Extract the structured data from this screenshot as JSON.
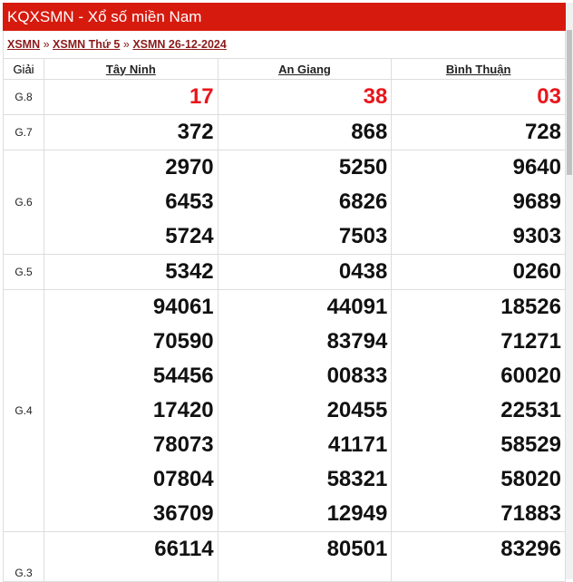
{
  "header": {
    "title": "KQXSMN - Xổ số miền Nam",
    "color": "#d71a0e"
  },
  "breadcrumb": [
    {
      "label": "XSMN"
    },
    {
      "label": "XSMN Thứ 5"
    },
    {
      "label": "XSMN 26-12-2024"
    }
  ],
  "breadcrumb_sep": "»",
  "table": {
    "prize_header": "Giải",
    "provinces": [
      "Tây Ninh",
      "An Giang",
      "Bình Thuận"
    ],
    "rows": [
      {
        "prize": "G.8",
        "red": true,
        "values": [
          [
            "17"
          ],
          [
            "38"
          ],
          [
            "03"
          ]
        ]
      },
      {
        "prize": "G.7",
        "values": [
          [
            "372"
          ],
          [
            "868"
          ],
          [
            "728"
          ]
        ]
      },
      {
        "prize": "G.6",
        "values": [
          [
            "2970",
            "6453",
            "5724"
          ],
          [
            "5250",
            "6826",
            "7503"
          ],
          [
            "9640",
            "9689",
            "9303"
          ]
        ]
      },
      {
        "prize": "G.5",
        "values": [
          [
            "5342"
          ],
          [
            "0438"
          ],
          [
            "0260"
          ]
        ]
      },
      {
        "prize": "G.4",
        "values": [
          [
            "94061",
            "70590",
            "54456",
            "17420",
            "78073",
            "07804",
            "36709"
          ],
          [
            "44091",
            "83794",
            "00833",
            "20455",
            "41171",
            "58321",
            "12949"
          ],
          [
            "18526",
            "71271",
            "60020",
            "22531",
            "58529",
            "58020",
            "71883"
          ]
        ]
      },
      {
        "prize": "G.3",
        "values": [
          [
            "66114"
          ],
          [
            "80501"
          ],
          [
            "83296"
          ]
        ]
      }
    ]
  }
}
